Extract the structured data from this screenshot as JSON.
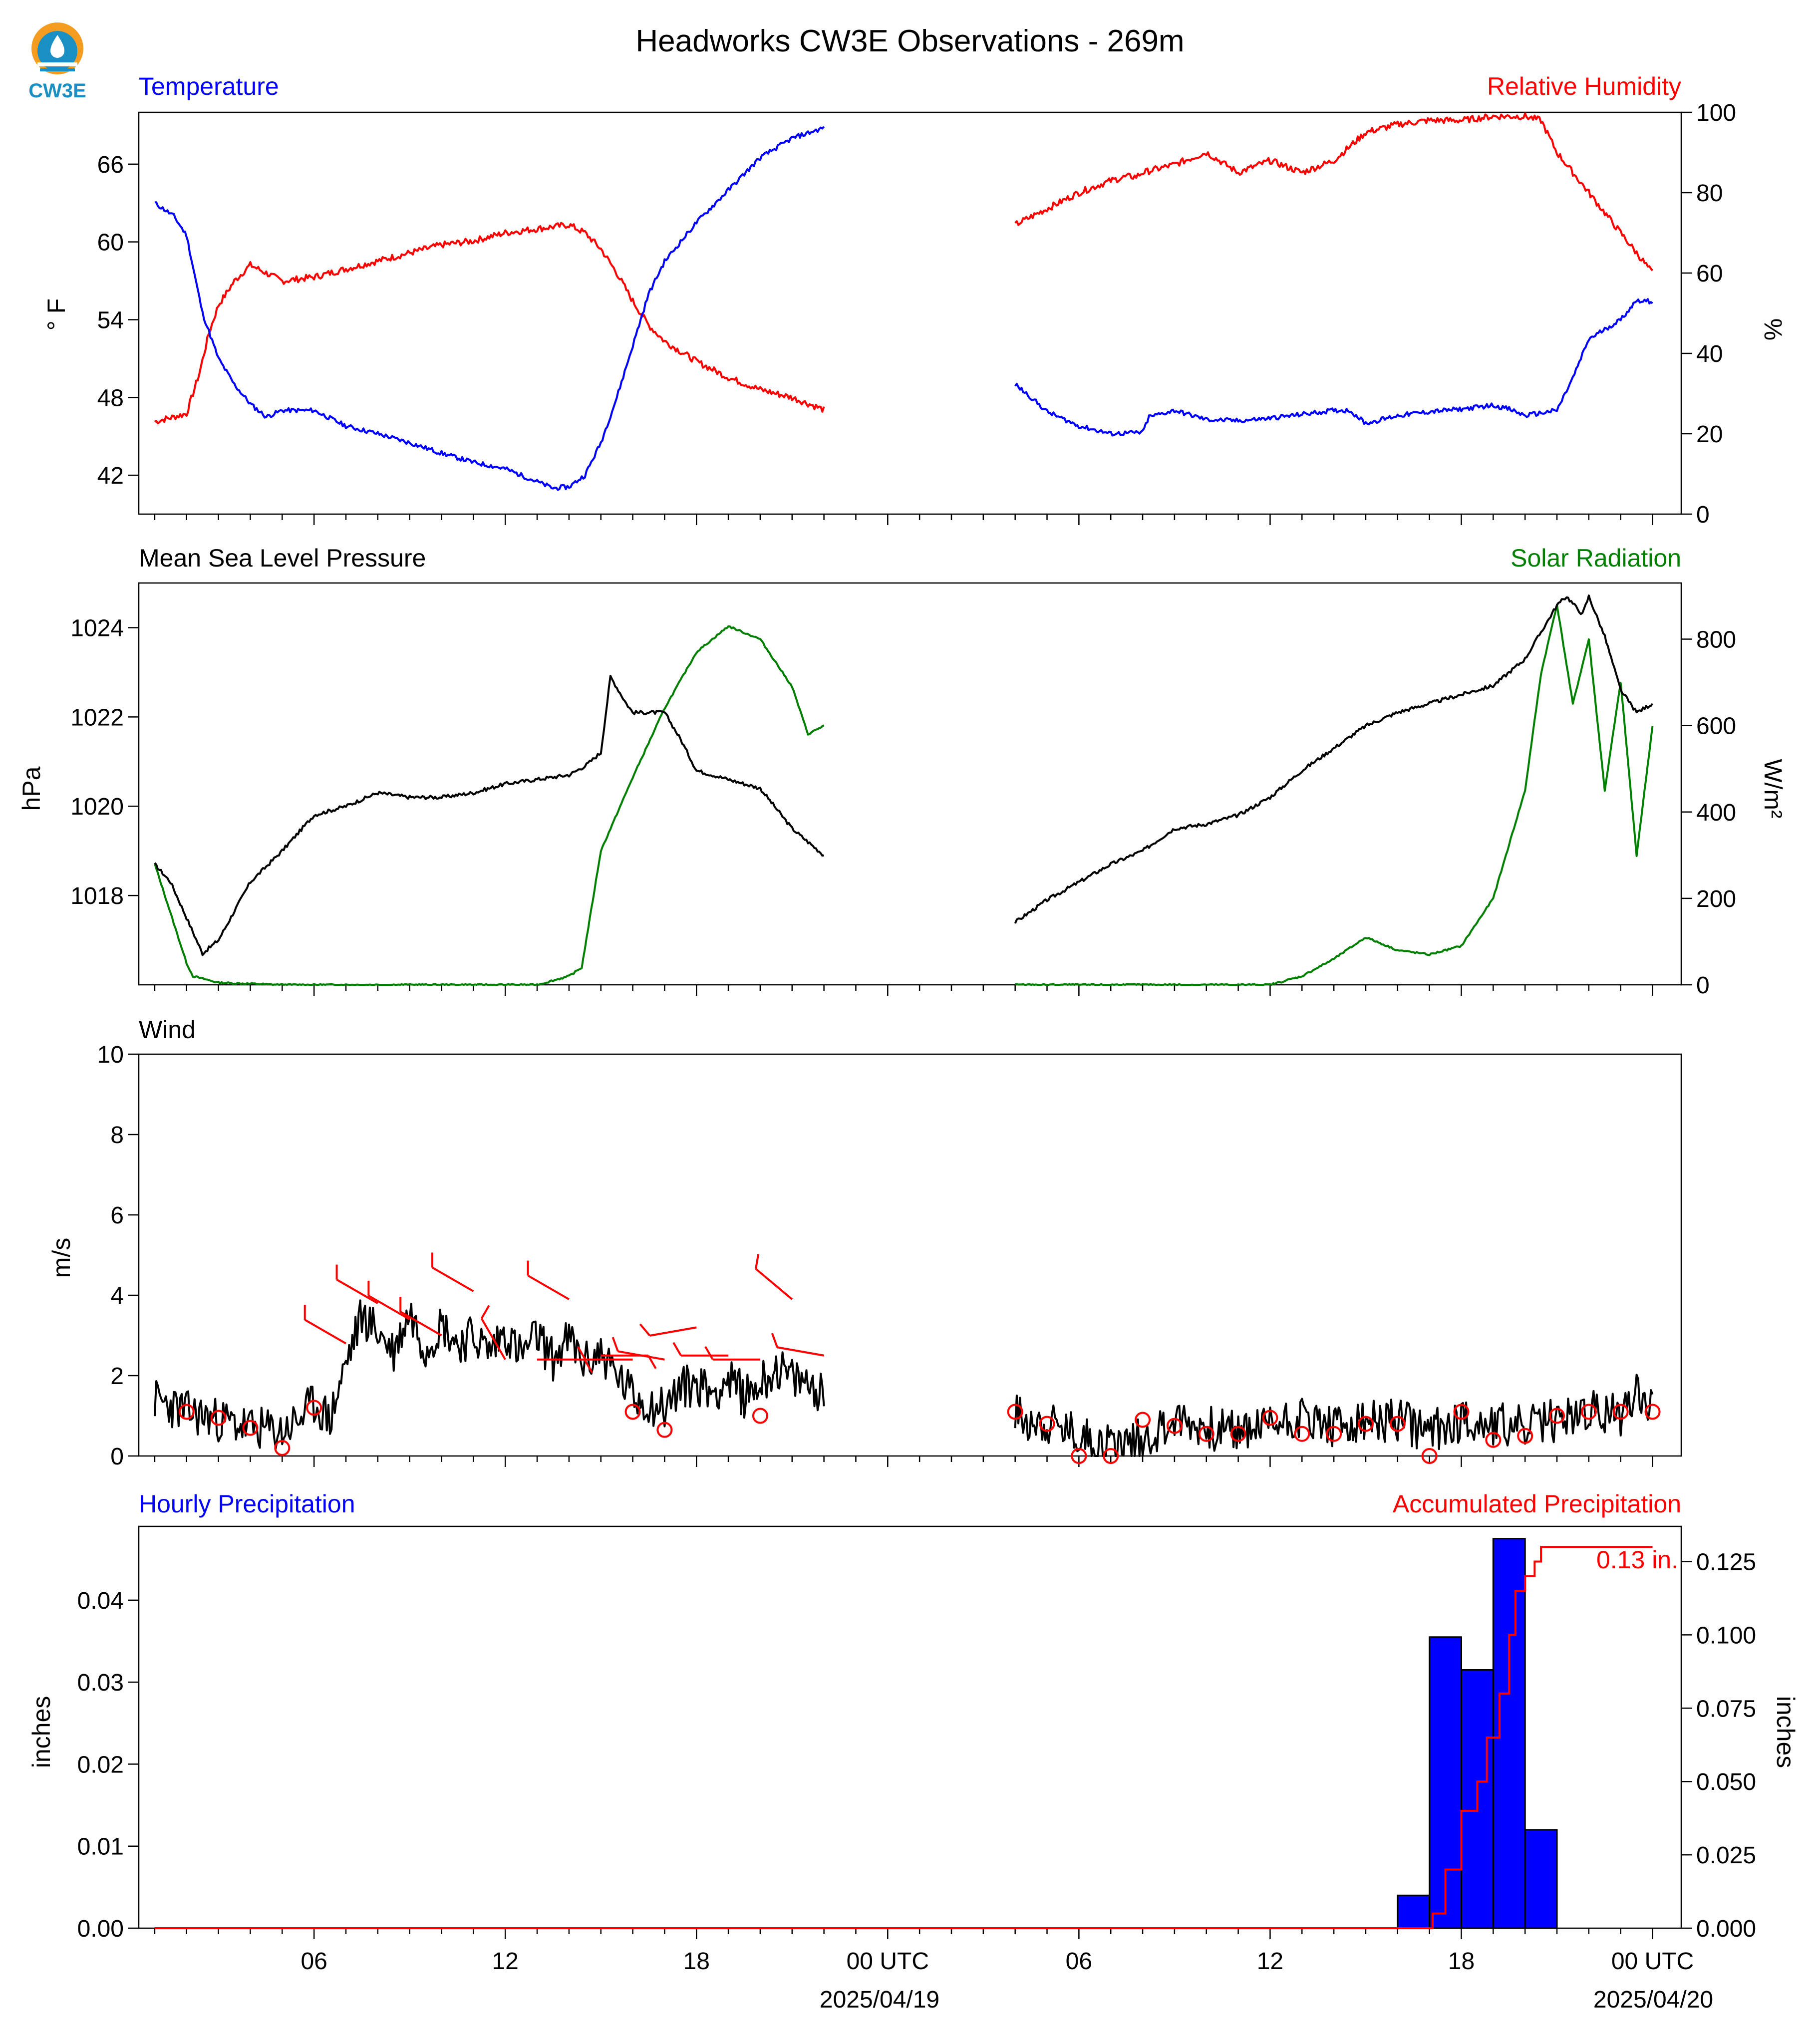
{
  "title": "Headworks CW3E Observations - 269m",
  "logo": {
    "text": "CW3E",
    "icon": "cw3e-drop-logo-icon"
  },
  "colors": {
    "temperature": "#0000ff",
    "humidity": "#ff0000",
    "pressure": "#000000",
    "solar": "#008000",
    "wind": "#000000",
    "barbs": "#ff0000",
    "hourly": "#0000ff",
    "accum": "#ff0000"
  },
  "time_axis": {
    "tick_labels": [
      "06",
      "12",
      "18",
      "00 UTC",
      "06",
      "12",
      "18",
      "00 UTC"
    ],
    "date_labels": [
      "2025/04/19",
      "2025/04/20"
    ]
  },
  "panels": {
    "temp_rh": {
      "left_title": "Temperature",
      "right_title": "Relative Humidity",
      "left_ylabel": "° F",
      "right_ylabel": "%"
    },
    "pressure_solar": {
      "left_title": "Mean Sea Level Pressure",
      "right_title": "Solar Radiation",
      "left_ylabel": "hPa",
      "right_ylabel": "W/m²"
    },
    "wind": {
      "left_title": "Wind",
      "left_ylabel": "m/s"
    },
    "precip": {
      "left_title": "Hourly Precipitation",
      "right_title": "Accumulated Precipitation",
      "left_ylabel": "inches",
      "right_ylabel": "inches",
      "accum_annotation": "0.13 in."
    }
  },
  "chart_data": [
    {
      "type": "line",
      "title": "Temperature / Relative Humidity",
      "x_unit": "hours since 2025/04/18 00 UTC",
      "xlim": [
        1,
        48
      ],
      "gap": [
        22,
        28
      ],
      "y_left": {
        "ylabel": "° F",
        "ylim": [
          39,
          70
        ],
        "ticks": [
          42,
          48,
          54,
          60,
          66
        ]
      },
      "y_right": {
        "ylabel": "%",
        "ylim": [
          0,
          100
        ],
        "ticks": [
          0,
          20,
          40,
          60,
          80,
          100
        ]
      },
      "series": [
        {
          "name": "Temperature",
          "axis": "left",
          "color": "#0000ff",
          "x": [
            1,
            1.6,
            2,
            2.5,
            3,
            3.5,
            4,
            4.5,
            5,
            6,
            7,
            8,
            9,
            10,
            11,
            12,
            13,
            13.5,
            14,
            14.5,
            15,
            15.5,
            16,
            16.5,
            17,
            18,
            19,
            20,
            21,
            22,
            28,
            28.5,
            29,
            30,
            31,
            32,
            32.2,
            33,
            34,
            35,
            36,
            37,
            38,
            38.5,
            39,
            40,
            41,
            42,
            43,
            43.5,
            44,
            45,
            45.5,
            46,
            47,
            47.5,
            48
          ],
          "y": [
            63,
            62,
            60.5,
            54.5,
            51,
            49,
            47.5,
            46.5,
            47,
            47,
            45.8,
            45.2,
            44.5,
            43.7,
            43,
            42.5,
            41.5,
            41,
            41.1,
            42,
            44.5,
            48,
            52,
            56,
            58.5,
            61.5,
            64,
            66.5,
            68,
            68.8,
            49,
            48,
            46.9,
            45.8,
            45.2,
            45.3,
            46.5,
            47,
            46.3,
            46.2,
            46.4,
            46.7,
            47,
            47,
            46,
            46.6,
            46.9,
            47.1,
            47.4,
            47.1,
            46.6,
            47,
            49.5,
            52.5,
            54,
            55.5,
            55.4
          ]
        },
        {
          "name": "Relative Humidity",
          "axis": "right",
          "color": "#ff0000",
          "x": [
            1,
            2,
            2.4,
            2.7,
            3,
            3.5,
            4,
            4.5,
            5,
            6,
            7,
            8,
            9,
            10,
            11,
            12,
            13,
            14,
            14.5,
            15,
            15.5,
            16,
            16.5,
            17,
            18,
            19,
            20,
            21,
            22,
            28,
            29,
            30,
            31,
            31.5,
            31.8,
            32,
            33,
            34,
            35,
            36,
            37,
            38,
            39,
            40,
            41,
            42,
            43,
            44,
            44.5,
            45,
            46,
            47,
            48
          ],
          "y": [
            23,
            25,
            35,
            45,
            52,
            58,
            62,
            60,
            58,
            59,
            61,
            63,
            65,
            67,
            68,
            70,
            71,
            72,
            70,
            66,
            60,
            53,
            47,
            43,
            38,
            34,
            31,
            29,
            26,
            72,
            76,
            80,
            83,
            84,
            84,
            85,
            87,
            90,
            85,
            88,
            85,
            88,
            95,
            97,
            98,
            98,
            99,
            99,
            98,
            90,
            80,
            70,
            60
          ]
        }
      ]
    },
    {
      "type": "line",
      "title": "Mean Sea Level Pressure / Solar Radiation",
      "x_unit": "hours since 2025/04/18 00 UTC",
      "xlim": [
        1,
        48
      ],
      "gap": [
        22,
        28
      ],
      "y_left": {
        "ylabel": "hPa",
        "ylim": [
          1016,
          1025
        ],
        "ticks": [
          1018,
          1020,
          1022,
          1024
        ]
      },
      "y_right": {
        "ylabel": "W/m²",
        "ylim": [
          0,
          930
        ],
        "ticks": [
          0,
          200,
          400,
          600,
          800
        ]
      },
      "series": [
        {
          "name": "Mean Sea Level Pressure",
          "axis": "left",
          "color": "#000000",
          "x": [
            1,
            1.5,
            2,
            2.5,
            3,
            4,
            5,
            6,
            7,
            8,
            9,
            10,
            11,
            12,
            13,
            14,
            14.5,
            15,
            15.3,
            15.8,
            16,
            16.5,
            17,
            17.5,
            18,
            19,
            20,
            21,
            22,
            28,
            29,
            30,
            31,
            32,
            33,
            34,
            35,
            36,
            37,
            38,
            39,
            40,
            41,
            42,
            43,
            44,
            45,
            45.3,
            45.8,
            46,
            46.5,
            47,
            47.5,
            48
          ],
          "y": [
            1018.7,
            1018.3,
            1017.5,
            1016.7,
            1017,
            1018.3,
            1019,
            1019.8,
            1020,
            1020.3,
            1020.2,
            1020.2,
            1020.3,
            1020.5,
            1020.6,
            1020.7,
            1020.9,
            1021.2,
            1022.9,
            1022.3,
            1022.1,
            1022.1,
            1022.1,
            1021.5,
            1020.8,
            1020.6,
            1020.4,
            1019.5,
            1018.9,
            1017.4,
            1017.9,
            1018.3,
            1018.7,
            1019,
            1019.5,
            1019.6,
            1019.8,
            1020.2,
            1020.8,
            1021.3,
            1021.8,
            1022.1,
            1022.3,
            1022.5,
            1022.7,
            1023.3,
            1024.5,
            1024.7,
            1024.3,
            1024.7,
            1023.8,
            1022.6,
            1022.1,
            1022.3
          ]
        },
        {
          "name": "Solar Radiation",
          "axis": "right",
          "color": "#008000",
          "x": [
            1,
            2,
            2.2,
            3,
            5,
            7,
            9,
            11,
            12,
            13,
            14,
            14.4,
            15,
            16,
            17,
            18,
            19,
            20,
            21,
            21.5,
            22,
            28,
            30,
            32,
            34,
            35,
            36,
            37,
            38,
            39,
            40,
            41,
            42,
            43,
            44,
            44.5,
            45,
            45.5,
            46,
            46.5,
            47,
            47.5,
            48
          ],
          "y": [
            280,
            50,
            20,
            5,
            0,
            0,
            0,
            0,
            0,
            0,
            20,
            40,
            310,
            480,
            640,
            770,
            830,
            800,
            690,
            580,
            600,
            0,
            0,
            0,
            0,
            0,
            0,
            20,
            60,
            110,
            80,
            70,
            90,
            200,
            450,
            720,
            880,
            650,
            800,
            450,
            700,
            300,
            600
          ]
        }
      ]
    },
    {
      "type": "line",
      "title": "Wind",
      "x_unit": "hours since 2025/04/18 00 UTC",
      "xlim": [
        1,
        48
      ],
      "gap": [
        22,
        28
      ],
      "y_left": {
        "ylabel": "m/s",
        "ylim": [
          0,
          10
        ],
        "ticks": [
          0,
          2,
          4,
          6,
          8,
          10
        ]
      },
      "series": [
        {
          "name": "Wind speed",
          "axis": "left",
          "color": "#000000",
          "x": [
            1,
            2,
            3,
            4,
            5,
            5.5,
            6,
            6.5,
            7,
            7.5,
            8,
            8.5,
            9,
            9.5,
            10,
            10.5,
            11,
            11.5,
            12,
            12.5,
            13,
            13.5,
            14,
            14.5,
            15,
            15.5,
            16,
            16.5,
            17,
            17.5,
            18,
            18.5,
            19,
            19.5,
            20,
            20.5,
            21,
            21.5,
            22,
            28,
            29,
            30,
            31,
            32,
            33,
            34,
            35,
            36,
            37,
            38,
            39,
            40,
            41,
            42,
            43,
            44,
            45,
            46,
            47,
            47.5,
            48
          ],
          "y": [
            1.4,
            1.1,
            0.9,
            0.7,
            0.6,
            0.9,
            1.3,
            0.9,
            2.3,
            3.5,
            3.1,
            2.6,
            3.6,
            2.7,
            3.3,
            2.8,
            3.0,
            2.6,
            3.1,
            2.5,
            3.0,
            2.4,
            2.9,
            2.3,
            2.6,
            2.0,
            1.5,
            1.3,
            1.2,
            1.7,
            1.8,
            1.6,
            1.9,
            1.5,
            1.8,
            2.2,
            1.9,
            1.8,
            1.6,
            1.0,
            0.8,
            0.5,
            0.3,
            0.4,
            0.9,
            0.7,
            0.6,
            0.8,
            1.0,
            0.7,
            0.8,
            0.9,
            0.6,
            0.9,
            0.8,
            0.7,
            0.9,
            1.1,
            1.0,
            1.7,
            1.2
          ]
        },
        {
          "name": "Calm wind markers",
          "axis": "left",
          "color": "#ff0000",
          "type": "scatter",
          "x": [
            2,
            3,
            4,
            5,
            6,
            16,
            17,
            20,
            28,
            29,
            30,
            31,
            32,
            33,
            34,
            35,
            36,
            37,
            38,
            39,
            40,
            41,
            42,
            43,
            44,
            45,
            46,
            47,
            48
          ],
          "y": [
            1.1,
            0.95,
            0.7,
            0.2,
            1.2,
            1.1,
            0.65,
            1.0,
            1.1,
            0.8,
            0.0,
            0.0,
            0.9,
            0.75,
            0.55,
            0.55,
            0.95,
            0.55,
            0.55,
            0.8,
            0.8,
            0.0,
            1.1,
            0.4,
            0.5,
            1.0,
            1.1,
            1.1,
            1.1
          ]
        },
        {
          "name": "Wind barbs",
          "axis": "left",
          "color": "#ff0000",
          "type": "barb",
          "x": [
            7,
            8,
            9,
            10,
            11,
            12,
            13,
            14,
            15,
            16,
            17,
            18,
            19,
            20,
            21,
            22
          ],
          "y": [
            2.8,
            3.8,
            3.4,
            3.0,
            4.1,
            2.4,
            2.4,
            3.9,
            2.5,
            2.4,
            2.4,
            3.2,
            2.5,
            2.4,
            3.9,
            2.5
          ],
          "direction_deg": [
            300,
            300,
            300,
            300,
            300,
            330,
            90,
            300,
            90,
            270,
            280,
            260,
            270,
            270,
            310,
            280
          ]
        }
      ]
    },
    {
      "type": "bar",
      "title": "Hourly / Accumulated Precipitation",
      "x_unit": "hours since 2025/04/18 00 UTC",
      "xlim": [
        1,
        48
      ],
      "y_left": {
        "ylabel": "inches",
        "ylim": [
          0,
          0.049
        ],
        "ticks": [
          0.0,
          0.01,
          0.02,
          0.03,
          0.04
        ]
      },
      "y_right": {
        "ylabel": "inches",
        "ylim": [
          0,
          0.137
        ],
        "ticks": [
          0.0,
          0.025,
          0.05,
          0.075,
          0.1,
          0.125
        ]
      },
      "series": [
        {
          "name": "Hourly Precipitation",
          "axis": "left",
          "color": "#0000ff",
          "bars": [
            {
              "start": 40,
              "end": 41,
              "value": 0.004
            },
            {
              "start": 41,
              "end": 42,
              "value": 0.0355
            },
            {
              "start": 42,
              "end": 43,
              "value": 0.0315
            },
            {
              "start": 43,
              "end": 44,
              "value": 0.0475
            },
            {
              "start": 44,
              "end": 45,
              "value": 0.012
            }
          ]
        },
        {
          "name": "Accumulated Precipitation",
          "axis": "right",
          "color": "#ff0000",
          "x": [
            1,
            40.9,
            41.1,
            41.5,
            42,
            42.5,
            42.8,
            43.2,
            43.5,
            43.7,
            44,
            44.3,
            44.5,
            48
          ],
          "y": [
            0,
            0,
            0.005,
            0.02,
            0.04,
            0.05,
            0.065,
            0.08,
            0.1,
            0.115,
            0.12,
            0.125,
            0.13,
            0.13
          ]
        }
      ]
    }
  ]
}
